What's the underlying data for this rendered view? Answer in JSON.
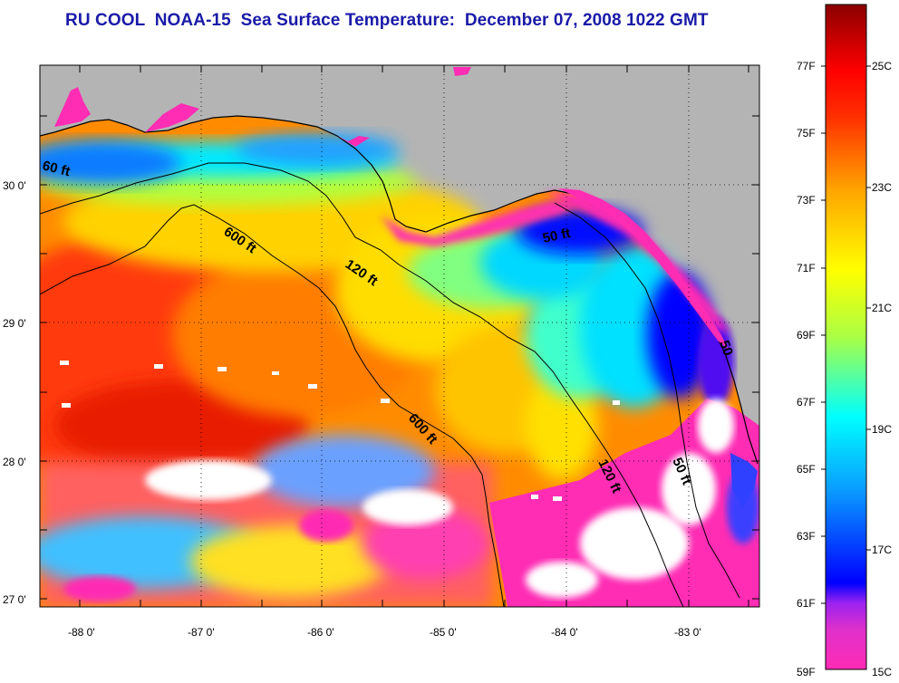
{
  "title": "RU COOL  NOAA-15  Sea Surface Temperature:  December 07, 2008 1022 GMT",
  "map": {
    "lon_ticks": [
      "-88 0'",
      "-87 0'",
      "-86 0'",
      "-85 0'",
      "-84 0'",
      "-83 0'"
    ],
    "lat_ticks": [
      "30 0'",
      "29 0'",
      "28 0'",
      "27 0'"
    ],
    "land_color": "#b4b4b4",
    "no_data_color": "#ffffff"
  },
  "contour_labels": [
    {
      "id": "contour-60ft-west",
      "text": "60 ft"
    },
    {
      "id": "contour-600ft-upper",
      "text": "600 ft"
    },
    {
      "id": "contour-120ft-upper",
      "text": "120 ft"
    },
    {
      "id": "contour-50ft-bigbend",
      "text": "50 ft"
    },
    {
      "id": "contour-50-coast",
      "text": "50"
    },
    {
      "id": "contour-600ft-lower",
      "text": "600 ft"
    },
    {
      "id": "contour-120ft-lower",
      "text": "120 ft"
    },
    {
      "id": "contour-50ft-lower",
      "text": "50 ft"
    }
  ],
  "colorbar": {
    "fahrenheit_labels": [
      "77F",
      "75F",
      "73F",
      "71F",
      "69F",
      "67F",
      "65F",
      "63F",
      "61F",
      "59F"
    ],
    "celsius_labels": [
      "25C",
      "23C",
      "21C",
      "19C",
      "17C",
      "15C"
    ],
    "range_c": [
      15,
      26.3
    ],
    "colors": [
      "#ff2cb4",
      "#a022ff",
      "#0000ff",
      "#00a0ff",
      "#00ffff",
      "#aaff44",
      "#ffff00",
      "#ffa500",
      "#ff3000",
      "#8b0000"
    ]
  }
}
